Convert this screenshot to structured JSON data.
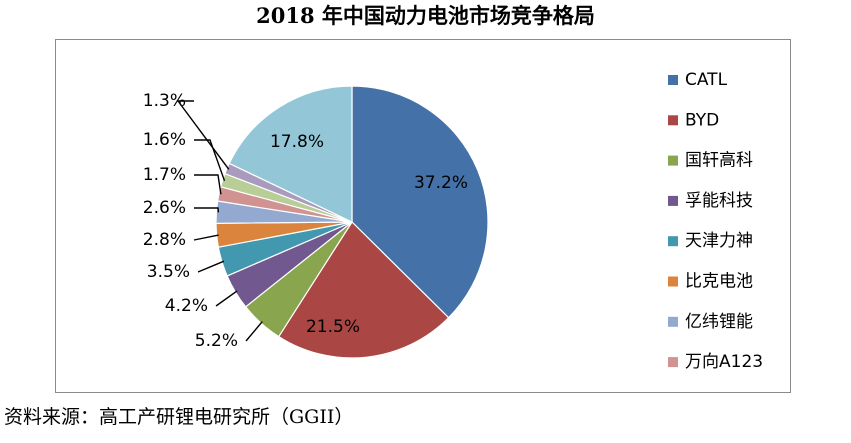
{
  "chart_data": {
    "type": "pie",
    "title": "2018 年中国动力电池市场竞争格局",
    "categories": [
      "CATL",
      "BYD",
      "国轩高科",
      "孚能科技",
      "天津力神",
      "比克电池",
      "亿纬锂能",
      "万向A123",
      "",
      "",
      ""
    ],
    "values": [
      37.2,
      21.5,
      5.2,
      4.2,
      3.5,
      2.8,
      2.6,
      1.7,
      1.6,
      1.3,
      17.8
    ],
    "labels": [
      "37.2%",
      "21.5%",
      "5.2%",
      "4.2%",
      "3.5%",
      "2.8%",
      "2.6%",
      "1.7%",
      "1.6%",
      "1.3%",
      "17.8%"
    ],
    "colors": [
      "#4472a8",
      "#aa4643",
      "#89a54e",
      "#71588f",
      "#4198af",
      "#db843d",
      "#93a9cf",
      "#d19392",
      "#b9cd96",
      "#a99bbd",
      "#93c6d6"
    ],
    "legend": [
      "CATL",
      "BYD",
      "国轩高科",
      "孚能科技",
      "天津力神",
      "比克电池",
      "亿纬锂能",
      "万向A123"
    ],
    "legend_position": "right",
    "start": "12 o'clock",
    "direction": "clockwise"
  },
  "source": "资料来源：高工产研锂电研究所（GGII）"
}
